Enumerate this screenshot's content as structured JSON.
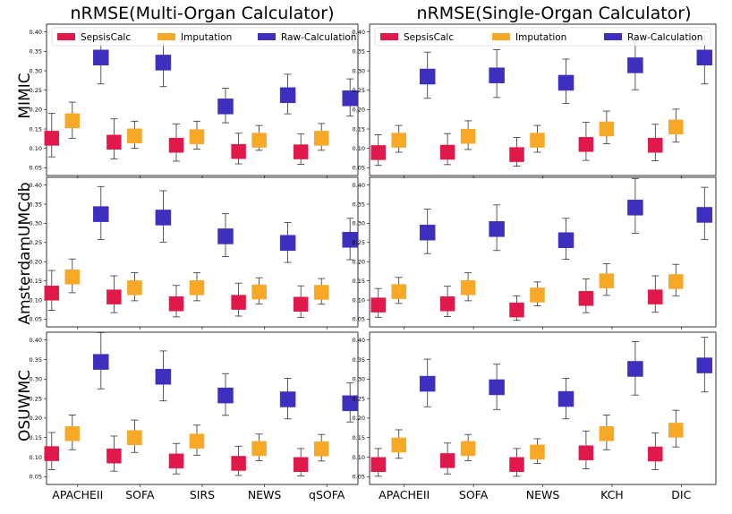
{
  "column_titles": [
    "nRMSE(Multi-Organ Calculator)",
    "nRMSE(Single-Organ Calculator)"
  ],
  "row_labels": [
    "MIMIC",
    "AmsterdamUMCdb",
    "OSUWMC"
  ],
  "colors": {
    "SepsisCalc": "#e0194a",
    "Imputation": "#f7a826",
    "Raw-Calculation": "#3f2fbf"
  },
  "chart_data": [
    {
      "type": "scatter",
      "row": "MIMIC",
      "column": "nRMSE(Multi-Organ Calculator)",
      "categories": [
        "APACHEII",
        "SOFA",
        "SIRS",
        "NEWS",
        "qSOFA"
      ],
      "ylim": [
        0.03,
        0.42
      ],
      "yticks": [
        "0.05",
        "0.10",
        "0.15",
        "0.20",
        "0.25",
        "0.30",
        "0.35",
        "0.40"
      ],
      "legend": "top",
      "series": [
        {
          "name": "SepsisCalc",
          "values": [
            0.126,
            0.116,
            0.108,
            0.092,
            0.091
          ],
          "low": [
            0.078,
            0.073,
            0.067,
            0.06,
            0.059
          ],
          "high": [
            0.19,
            0.176,
            0.163,
            0.139,
            0.137
          ]
        },
        {
          "name": "Imputation",
          "values": [
            0.171,
            0.132,
            0.13,
            0.121,
            0.126
          ],
          "low": [
            0.126,
            0.1,
            0.098,
            0.095,
            0.095
          ],
          "high": [
            0.219,
            0.17,
            0.17,
            0.159,
            0.164
          ]
        },
        {
          "name": "Raw-Calculation",
          "values": [
            0.334,
            0.321,
            0.208,
            0.237,
            0.229
          ],
          "low": [
            0.266,
            0.259,
            0.166,
            0.189,
            0.183
          ],
          "high": [
            0.401,
            0.388,
            0.255,
            0.291,
            0.279
          ]
        }
      ]
    },
    {
      "type": "scatter",
      "row": "MIMIC",
      "column": "nRMSE(Single-Organ Calculator)",
      "categories": [
        "APACHEII",
        "SOFA",
        "NEWS",
        "KCH",
        "DIC"
      ],
      "ylim": [
        0.03,
        0.42
      ],
      "yticks": [
        "0.05",
        "0.10",
        "0.15",
        "0.20",
        "0.25",
        "0.30",
        "0.35",
        "0.40"
      ],
      "legend": "top",
      "series": [
        {
          "name": "SepsisCalc",
          "values": [
            0.089,
            0.09,
            0.084,
            0.11,
            0.108
          ],
          "low": [
            0.056,
            0.058,
            0.054,
            0.069,
            0.068
          ],
          "high": [
            0.135,
            0.138,
            0.128,
            0.167,
            0.162
          ]
        },
        {
          "name": "Imputation",
          "values": [
            0.121,
            0.131,
            0.121,
            0.15,
            0.155
          ],
          "low": [
            0.09,
            0.097,
            0.09,
            0.112,
            0.116
          ],
          "high": [
            0.159,
            0.171,
            0.159,
            0.196,
            0.201
          ]
        },
        {
          "name": "Raw-Calculation",
          "values": [
            0.285,
            0.288,
            0.269,
            0.314,
            0.334
          ],
          "low": [
            0.229,
            0.231,
            0.216,
            0.251,
            0.266
          ],
          "high": [
            0.348,
            0.354,
            0.33,
            0.386,
            0.401
          ]
        }
      ]
    },
    {
      "type": "scatter",
      "row": "AmsterdamUMCdb",
      "column": "nRMSE(Multi-Organ Calculator)",
      "categories": [
        "APACHEII",
        "SOFA",
        "SIRS",
        "NEWS",
        "qSOFA"
      ],
      "ylim": [
        0.03,
        0.42
      ],
      "yticks": [
        "0.05",
        "0.10",
        "0.15",
        "0.20",
        "0.25",
        "0.30",
        "0.35",
        "0.40"
      ],
      "series": [
        {
          "name": "SepsisCalc",
          "values": [
            0.118,
            0.108,
            0.09,
            0.094,
            0.089
          ],
          "low": [
            0.073,
            0.067,
            0.056,
            0.058,
            0.055
          ],
          "high": [
            0.177,
            0.163,
            0.138,
            0.144,
            0.137
          ]
        },
        {
          "name": "Imputation",
          "values": [
            0.16,
            0.132,
            0.132,
            0.121,
            0.12
          ],
          "low": [
            0.119,
            0.098,
            0.098,
            0.09,
            0.089
          ],
          "high": [
            0.207,
            0.171,
            0.171,
            0.158,
            0.156
          ]
        },
        {
          "name": "Raw-Calculation",
          "values": [
            0.324,
            0.315,
            0.266,
            0.249,
            0.257
          ],
          "low": [
            0.258,
            0.251,
            0.213,
            0.198,
            0.205
          ],
          "high": [
            0.396,
            0.385,
            0.325,
            0.302,
            0.313
          ]
        }
      ]
    },
    {
      "type": "scatter",
      "row": "AmsterdamUMCdb",
      "column": "nRMSE(Single-Organ Calculator)",
      "categories": [
        "APACHEII",
        "SOFA",
        "NEWS",
        "KCH",
        "DIC"
      ],
      "ylim": [
        0.03,
        0.42
      ],
      "yticks": [
        "0.05",
        "0.10",
        "0.15",
        "0.20",
        "0.25",
        "0.30",
        "0.35",
        "0.40"
      ],
      "series": [
        {
          "name": "SepsisCalc",
          "values": [
            0.087,
            0.09,
            0.074,
            0.104,
            0.108
          ],
          "low": [
            0.055,
            0.057,
            0.047,
            0.067,
            0.068
          ],
          "high": [
            0.13,
            0.136,
            0.111,
            0.155,
            0.163
          ]
        },
        {
          "name": "Imputation",
          "values": [
            0.122,
            0.132,
            0.113,
            0.15,
            0.148
          ],
          "low": [
            0.091,
            0.098,
            0.085,
            0.112,
            0.111
          ],
          "high": [
            0.159,
            0.171,
            0.147,
            0.195,
            0.193
          ]
        },
        {
          "name": "Raw-Calculation",
          "values": [
            0.276,
            0.285,
            0.256,
            0.341,
            0.322
          ],
          "low": [
            0.221,
            0.229,
            0.206,
            0.274,
            0.258
          ],
          "high": [
            0.337,
            0.348,
            0.313,
            0.417,
            0.394
          ]
        }
      ]
    },
    {
      "type": "scatter",
      "row": "OSUWMC",
      "column": "nRMSE(Multi-Organ Calculator)",
      "categories": [
        "APACHEII",
        "SOFA",
        "SIRS",
        "NEWS",
        "qSOFA"
      ],
      "ylim": [
        0.03,
        0.42
      ],
      "yticks": [
        "0.05",
        "0.10",
        "0.15",
        "0.20",
        "0.25",
        "0.30",
        "0.35",
        "0.40"
      ],
      "series": [
        {
          "name": "SepsisCalc",
          "values": [
            0.109,
            0.103,
            0.09,
            0.084,
            0.081
          ],
          "low": [
            0.068,
            0.064,
            0.057,
            0.053,
            0.052
          ],
          "high": [
            0.163,
            0.154,
            0.135,
            0.128,
            0.122
          ]
        },
        {
          "name": "Imputation",
          "values": [
            0.16,
            0.15,
            0.141,
            0.122,
            0.121
          ],
          "low": [
            0.119,
            0.112,
            0.105,
            0.091,
            0.09
          ],
          "high": [
            0.208,
            0.195,
            0.182,
            0.159,
            0.158
          ]
        },
        {
          "name": "Raw-Calculation",
          "values": [
            0.344,
            0.306,
            0.258,
            0.248,
            0.238
          ],
          "low": [
            0.275,
            0.244,
            0.207,
            0.198,
            0.19
          ],
          "high": [
            0.419,
            0.372,
            0.314,
            0.302,
            0.29
          ]
        }
      ]
    },
    {
      "type": "scatter",
      "row": "OSUWMC",
      "column": "nRMSE(Single-Organ Calculator)",
      "categories": [
        "APACHEII",
        "SOFA",
        "NEWS",
        "KCH",
        "DIC"
      ],
      "ylim": [
        0.03,
        0.42
      ],
      "yticks": [
        "0.05",
        "0.10",
        "0.15",
        "0.20",
        "0.25",
        "0.30",
        "0.35",
        "0.40"
      ],
      "series": [
        {
          "name": "SepsisCalc",
          "values": [
            0.081,
            0.091,
            0.081,
            0.111,
            0.108
          ],
          "low": [
            0.051,
            0.057,
            0.051,
            0.07,
            0.068
          ],
          "high": [
            0.122,
            0.136,
            0.122,
            0.167,
            0.162
          ]
        },
        {
          "name": "Imputation",
          "values": [
            0.131,
            0.122,
            0.113,
            0.16,
            0.169
          ],
          "low": [
            0.097,
            0.091,
            0.084,
            0.119,
            0.126
          ],
          "high": [
            0.17,
            0.158,
            0.147,
            0.208,
            0.22
          ]
        },
        {
          "name": "Raw-Calculation",
          "values": [
            0.288,
            0.279,
            0.249,
            0.326,
            0.335
          ],
          "low": [
            0.229,
            0.222,
            0.198,
            0.259,
            0.267
          ],
          "high": [
            0.351,
            0.338,
            0.302,
            0.396,
            0.407
          ]
        }
      ]
    }
  ]
}
